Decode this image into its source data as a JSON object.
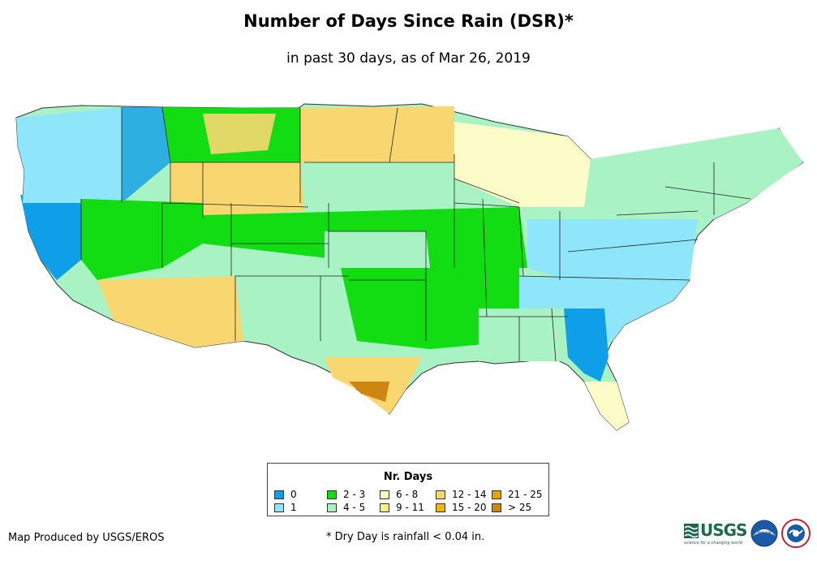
{
  "header": {
    "title": "Number of Days Since Rain (DSR)*",
    "subtitle": "in past 30 days, as of Mar 26, 2019"
  },
  "legend": {
    "title": "Nr. Days",
    "items": [
      {
        "label": "0",
        "color": "#0f9ee8"
      },
      {
        "label": "1",
        "color": "#8fe6fa"
      },
      {
        "label": "2 - 3",
        "color": "#12dc12"
      },
      {
        "label": "4 - 5",
        "color": "#a9f2c4"
      },
      {
        "label": "6 - 8",
        "color": "#fcfcc8"
      },
      {
        "label": "9 - 11",
        "color": "#f8ef8c"
      },
      {
        "label": "12 - 14",
        "color": "#f8d771"
      },
      {
        "label": "15 - 20",
        "color": "#f6b70c"
      },
      {
        "label": "21 - 25",
        "color": "#e9a100"
      },
      {
        "label": "> 25",
        "color": "#cd8710"
      }
    ]
  },
  "footer": {
    "credit": "Map Produced by USGS/EROS",
    "footnote": "* Dry Day is rainfall < 0.04 in."
  },
  "logos": {
    "usgs_text": "USGS",
    "usgs_tagline": "science for a changing world",
    "noaa_text": "noaa",
    "nws_icon": "nws-logo"
  }
}
